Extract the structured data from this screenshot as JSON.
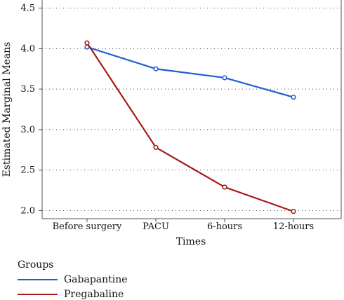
{
  "chart_data": {
    "type": "line",
    "title": "",
    "xlabel": "Times",
    "ylabel": "Estimated Marginal Means",
    "categories": [
      "Before surgery",
      "PACU",
      "6-hours",
      "12-hours"
    ],
    "ylim": [
      1.9,
      4.6
    ],
    "yticks": [
      "2.0",
      "2.5",
      "3.0",
      "3.5",
      "4.0",
      "4.5"
    ],
    "grid": "horizontal dotted",
    "legend": {
      "title": "Groups",
      "placement": "bottom-left"
    },
    "series": [
      {
        "name": "Gabapantine",
        "color": "#1f5fd1",
        "values": [
          4.02,
          3.75,
          3.64,
          3.4
        ]
      },
      {
        "name": "Pregabaline",
        "color": "#a51a1a",
        "values": [
          4.07,
          2.78,
          2.29,
          1.99
        ]
      }
    ]
  }
}
